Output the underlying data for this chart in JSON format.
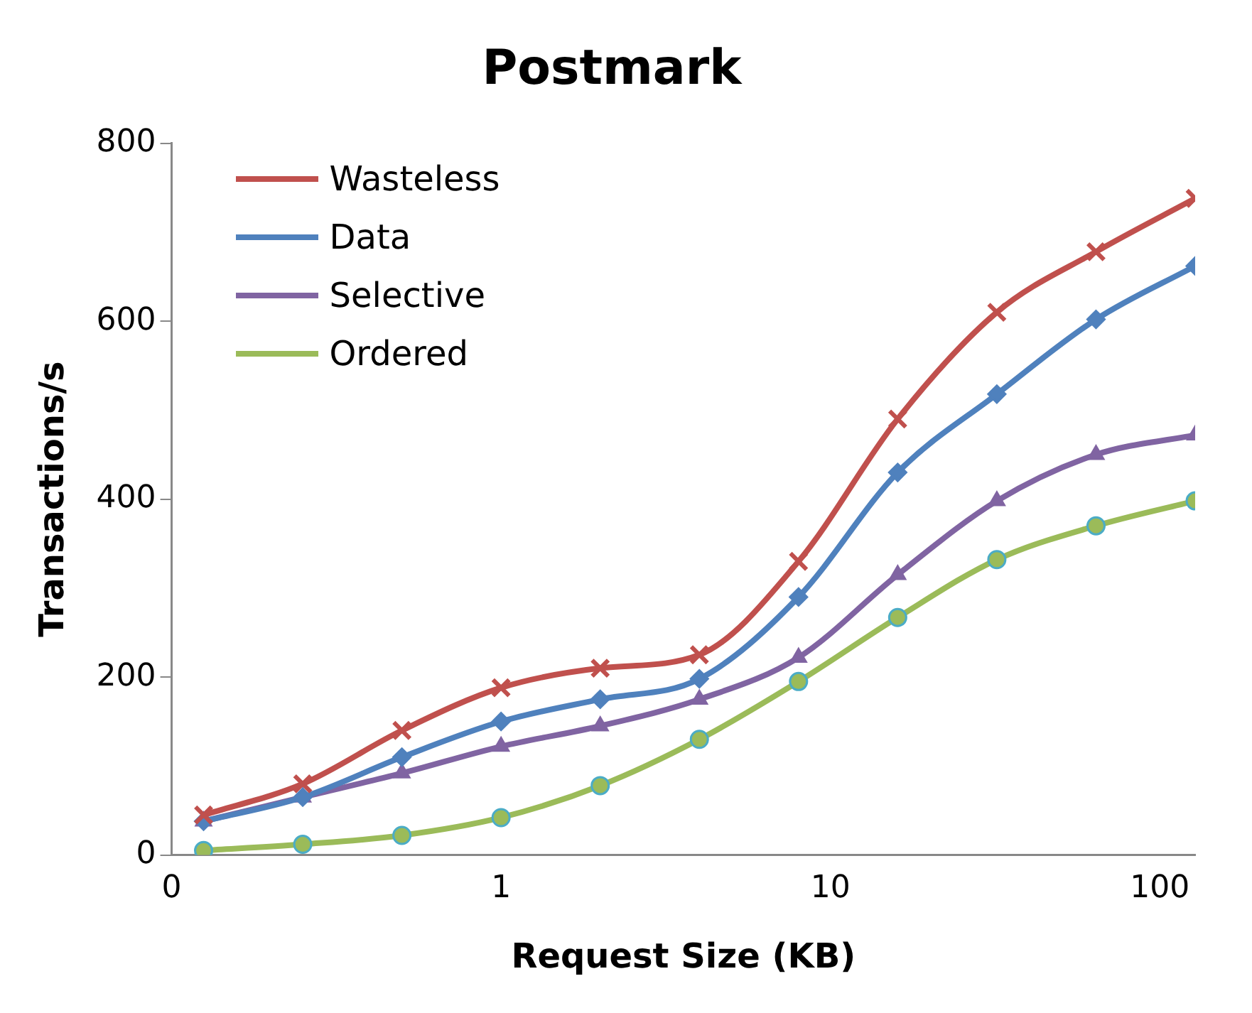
{
  "chart_data": {
    "type": "line",
    "title": "Postmark",
    "xlabel": "Request Size (KB)",
    "ylabel": "Transactions/s",
    "log": "x",
    "x": [
      0.125,
      0.25,
      0.5,
      1,
      2,
      4,
      8,
      16,
      32,
      64,
      128
    ],
    "xlim": [
      0.1,
      128
    ],
    "xticks": [
      {
        "value": 0.1,
        "label": "0"
      },
      1,
      10,
      100
    ],
    "ylim": [
      0,
      800
    ],
    "yticks": [
      0,
      200,
      400,
      600,
      800
    ],
    "grid": false,
    "legend": "top left",
    "series": [
      {
        "name": "Wasteless",
        "color": "#c0504d",
        "marker": "cross",
        "values": [
          45,
          80,
          140,
          188,
          210,
          225,
          330,
          490,
          610,
          678,
          738
        ]
      },
      {
        "name": "Data",
        "color": "#4f81bd",
        "marker": "diamond",
        "values": [
          38,
          65,
          110,
          150,
          175,
          198,
          290,
          430,
          518,
          602,
          662
        ]
      },
      {
        "name": "Selective",
        "color": "#8064a2",
        "marker": "triangle",
        "values": [
          38,
          65,
          92,
          122,
          145,
          175,
          222,
          315,
          398,
          450,
          472
        ]
      },
      {
        "name": "Ordered",
        "color": "#9bbb59",
        "marker": "circle",
        "values": [
          5,
          12,
          22,
          42,
          78,
          130,
          195,
          267,
          332,
          370,
          398
        ]
      }
    ]
  }
}
